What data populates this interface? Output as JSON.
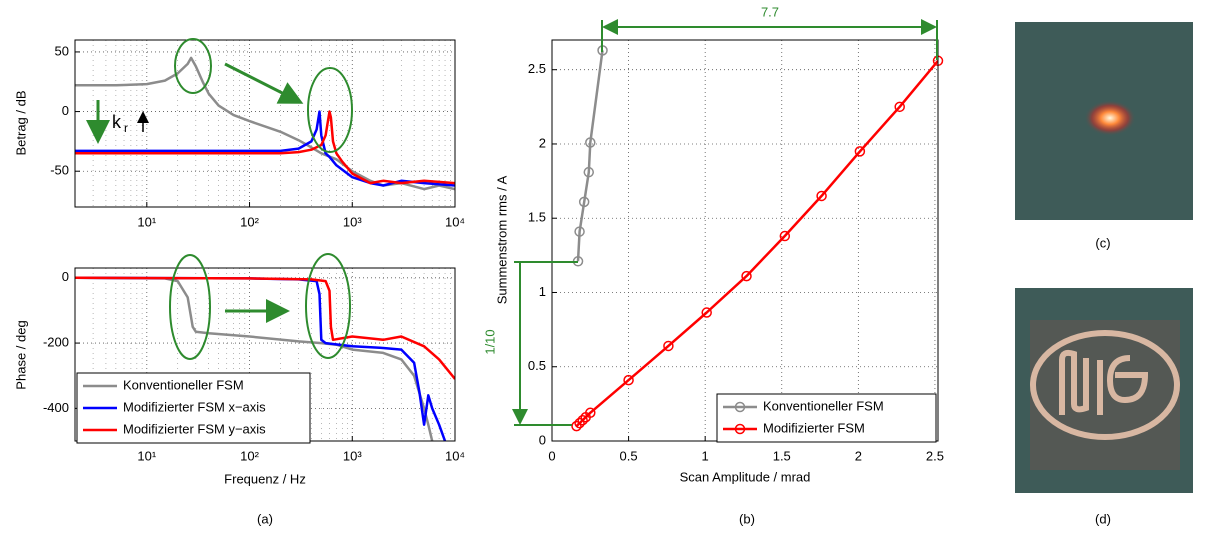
{
  "chart_data": [
    {
      "type": "line",
      "xscale": "log",
      "xlim": [
        2,
        10000
      ],
      "xticks": [
        {
          "value": 10,
          "label": "10¹"
        },
        {
          "value": 100,
          "label": "10²"
        },
        {
          "value": 1000,
          "label": "10³"
        },
        {
          "value": 10000,
          "label": "10⁴"
        }
      ],
      "ylim": [
        -80,
        60
      ],
      "yticks": [
        -50,
        0,
        50
      ],
      "ylabel": "Betrag / dB",
      "grid": true,
      "annotations": [
        {
          "text": "k",
          "subscript": "r"
        }
      ],
      "series": [
        {
          "color": "#8c8c8c",
          "x": [
            2,
            5,
            10,
            15,
            20,
            25,
            27,
            30,
            35,
            40,
            50,
            70,
            100,
            200,
            300,
            400,
            500,
            700,
            1000,
            1500,
            2000,
            3000,
            5000,
            7000,
            10000
          ],
          "values": [
            22,
            22,
            23,
            26,
            32,
            40,
            45,
            38,
            25,
            15,
            5,
            -3,
            -8,
            -17,
            -24,
            -30,
            -35,
            -40,
            -50,
            -58,
            -62,
            -60,
            -65,
            -62,
            -65
          ]
        },
        {
          "color": "#0000ff",
          "x": [
            2,
            100,
            200,
            300,
            400,
            450,
            480,
            500,
            550,
            600,
            700,
            1000,
            1500,
            2000,
            3000,
            5000,
            10000
          ],
          "values": [
            -33,
            -33,
            -33,
            -31,
            -25,
            -15,
            0,
            -20,
            -35,
            -38,
            -45,
            -55,
            -60,
            -62,
            -58,
            -60,
            -62
          ]
        },
        {
          "color": "#ff0000",
          "x": [
            2,
            100,
            200,
            300,
            400,
            500,
            550,
            600,
            620,
            650,
            700,
            800,
            1000,
            1500,
            2000,
            3000,
            5000,
            10000
          ],
          "values": [
            -35,
            -35,
            -35,
            -34,
            -32,
            -28,
            -20,
            0,
            -5,
            -25,
            -35,
            -42,
            -52,
            -60,
            -58,
            -60,
            -58,
            -60
          ]
        }
      ]
    },
    {
      "type": "line",
      "xscale": "log",
      "xlim": [
        2,
        10000
      ],
      "xticks": [
        {
          "value": 10,
          "label": "10¹"
        },
        {
          "value": 100,
          "label": "10²"
        },
        {
          "value": 1000,
          "label": "10³"
        },
        {
          "value": 10000,
          "label": "10⁴"
        }
      ],
      "ylim": [
        -500,
        30
      ],
      "yticks": [
        -400,
        -200,
        0
      ],
      "ylabel": "Phase / deg",
      "xlabel": "Frequenz / Hz",
      "grid": true,
      "legend": "lower left",
      "caption": "(a)",
      "series": [
        {
          "name": "Konventioneller FSM",
          "color": "#8c8c8c",
          "x": [
            2,
            15,
            20,
            25,
            28,
            30,
            40,
            100,
            300,
            500,
            700,
            1000,
            2000,
            3000,
            4000,
            5000,
            5500,
            6000
          ],
          "values": [
            0,
            -2,
            -10,
            -60,
            -150,
            -165,
            -170,
            -180,
            -195,
            -200,
            -205,
            -220,
            -230,
            -250,
            -300,
            -400,
            -450,
            -500
          ]
        },
        {
          "name": "Modifizierter FSM x−axis",
          "color": "#0000ff",
          "x": [
            2,
            100,
            300,
            450,
            480,
            500,
            550,
            1000,
            2000,
            3000,
            4000,
            4500,
            5000,
            5500,
            6000,
            7000,
            8000
          ],
          "values": [
            0,
            -2,
            -5,
            -10,
            -50,
            -190,
            -200,
            -210,
            -215,
            -220,
            -260,
            -350,
            -450,
            -360,
            -400,
            -450,
            -500
          ]
        },
        {
          "name": "Modifizierter FSM y−axis",
          "color": "#ff0000",
          "x": [
            2,
            100,
            400,
            550,
            600,
            620,
            650,
            1000,
            2000,
            3000,
            5000,
            7000,
            10000
          ],
          "values": [
            0,
            -2,
            -5,
            -10,
            -40,
            -150,
            -190,
            -180,
            -190,
            -180,
            -210,
            -250,
            -310
          ]
        }
      ]
    },
    {
      "type": "line",
      "markers": "circle",
      "xlim": [
        0,
        2.52
      ],
      "xticks": [
        0,
        0.5,
        1,
        1.5,
        2,
        2.5
      ],
      "ylim": [
        0,
        2.7
      ],
      "yticks": [
        0,
        0.5,
        1,
        1.5,
        2,
        2.5
      ],
      "xlabel": "Scan Amplitude / mrad",
      "ylabel": "Summenstrom rms / A",
      "grid": true,
      "legend": "lower right",
      "caption": "(b)",
      "annotations": [
        {
          "text": "7.7"
        },
        {
          "text": "1/10"
        }
      ],
      "series": [
        {
          "name": "Konventioneller FSM",
          "color": "#8c8c8c",
          "x": [
            0.17,
            0.18,
            0.21,
            0.24,
            0.25,
            0.33
          ],
          "values": [
            1.21,
            1.41,
            1.61,
            1.81,
            2.01,
            2.63
          ]
        },
        {
          "name": "Modifizierter FSM",
          "color": "#ff0000",
          "x": [
            0.16,
            0.18,
            0.2,
            0.22,
            0.25,
            0.5,
            0.76,
            1.01,
            1.27,
            1.52,
            1.76,
            2.01,
            2.27,
            2.52
          ],
          "values": [
            0.1,
            0.12,
            0.14,
            0.16,
            0.19,
            0.41,
            0.64,
            0.865,
            1.11,
            1.38,
            1.65,
            1.95,
            2.25,
            2.56
          ]
        }
      ]
    },
    {
      "type": "image",
      "caption": "(c)"
    },
    {
      "type": "image",
      "caption": "(d)"
    }
  ]
}
